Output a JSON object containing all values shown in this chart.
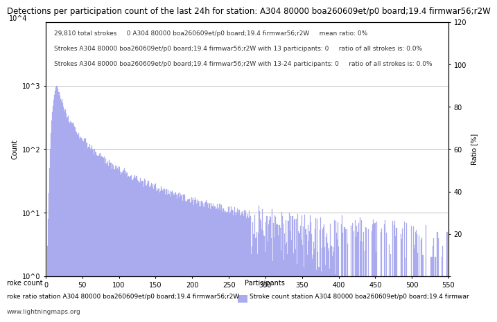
{
  "title": "Detections per participation count of the last 24h for station: A304 80000 boa260609et/p0 board;19.4 firmwar56;r2W",
  "xlabel_left": "roke count",
  "xlabel_right": "Participants",
  "ylabel_left": "Count",
  "ylabel_right": "Ratio [%]",
  "legend_label": "Stroke count station A304 80000 boa260609et/p0 board;19.4 firmwar",
  "annotation_line1": "29,810 total strokes     0 A304 80000 boa260609et/p0 board;19.4 firmwar56;r2W     mean ratio: 0%",
  "annotation_line2": "Strokes A304 80000 boa260609et/p0 board;19.4 firmwar56;r2W with 13 participants: 0     ratio of all strokes is: 0.0%",
  "annotation_line3": "Strokes A304 80000 boa260609et/p0 board;19.4 firmwar56;r2W with 13-24 participants: 0     ratio of all strokes is: 0.0%",
  "footer": "www.lightningmaps.org",
  "xlabel_bottom1": "roke count",
  "xlabel_bottom2": "roke ratio station A304 80000 boa260609et/p0 board;19.4 firmwar56;r2W",
  "bar_color": "#aaaaee",
  "bar_edgecolor": "#aaaaee",
  "xlim": [
    0,
    550
  ],
  "ylim_log": [
    1,
    10000
  ],
  "ylim_ratio": [
    0,
    120
  ],
  "yticks_ratio": [
    0,
    20,
    40,
    60,
    80,
    100,
    120
  ],
  "xticks": [
    0,
    50,
    100,
    150,
    200,
    250,
    300,
    350,
    400,
    450,
    500,
    550
  ],
  "background_color": "#ffffff",
  "grid_color": "#aaaaaa",
  "title_fontsize": 8.5,
  "annotation_fontsize": 6.5,
  "axis_fontsize": 7,
  "tick_fontsize": 7,
  "footer_fontsize": 6.5
}
